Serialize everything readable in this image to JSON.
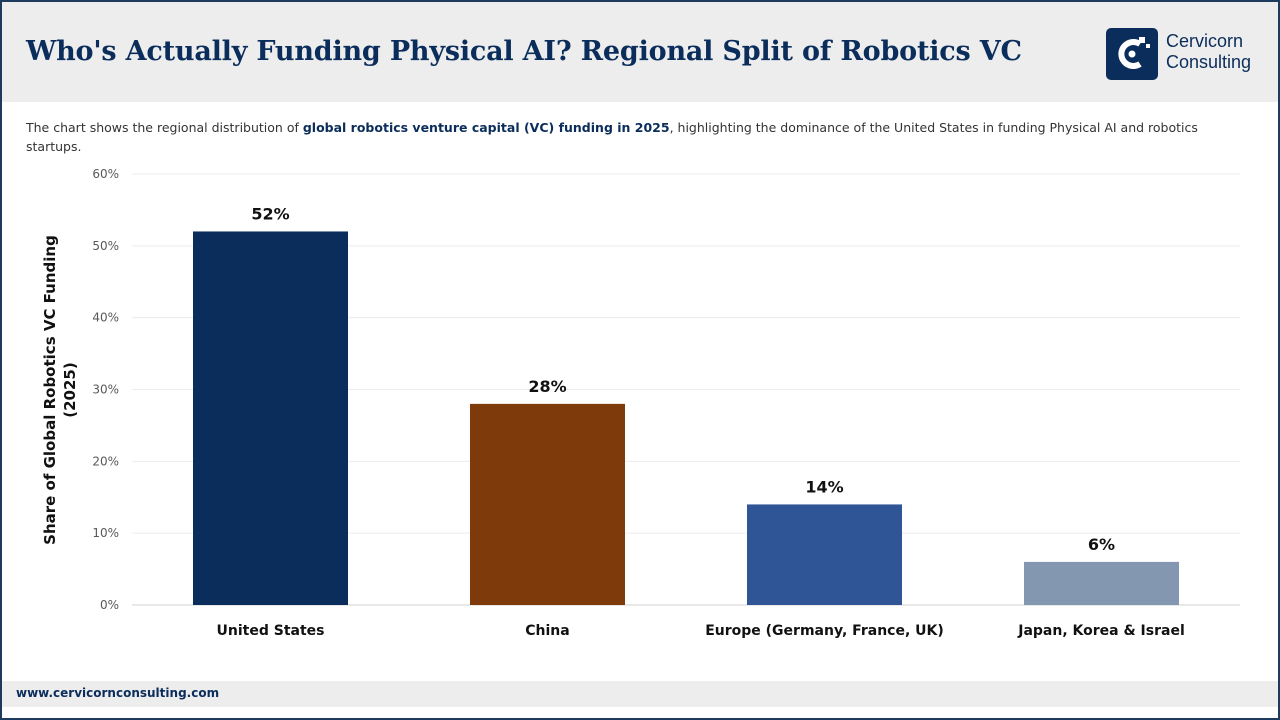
{
  "header": {
    "title": "Who's Actually Funding Physical AI? Regional Split of Robotics VC",
    "logo": {
      "line1": "Cervicorn",
      "line2": "Consulting",
      "icon": "cervicorn-logo-icon"
    }
  },
  "subtitle": {
    "before": "The chart shows the regional distribution of ",
    "bold": "global robotics venture capital (VC) funding in 2025",
    "after": ", highlighting the dominance of the United States in funding Physical AI and robotics startups."
  },
  "footer": {
    "url": "www.cervicornconsulting.com"
  },
  "colors": {
    "brand": "#0b2d5b",
    "bars": [
      "#0b2d5b",
      "#7f3a0c",
      "#2f5597",
      "#8497b0"
    ]
  },
  "chart_data": {
    "type": "bar",
    "title": "",
    "xlabel": "",
    "ylabel_lines": [
      "Share of Global Robotics VC Funding",
      "(2025)"
    ],
    "categories": [
      "United States",
      "China",
      "Europe (Germany, France, UK)",
      "Japan, Korea & Israel"
    ],
    "values": [
      52,
      28,
      14,
      6
    ],
    "value_labels": [
      "52%",
      "28%",
      "14%",
      "6%"
    ],
    "ylim": [
      0,
      60
    ],
    "yticks": [
      0,
      10,
      20,
      30,
      40,
      50,
      60
    ],
    "ytick_labels": [
      "0%",
      "10%",
      "20%",
      "30%",
      "40%",
      "50%",
      "60%"
    ],
    "grid": true,
    "legend": "none"
  }
}
